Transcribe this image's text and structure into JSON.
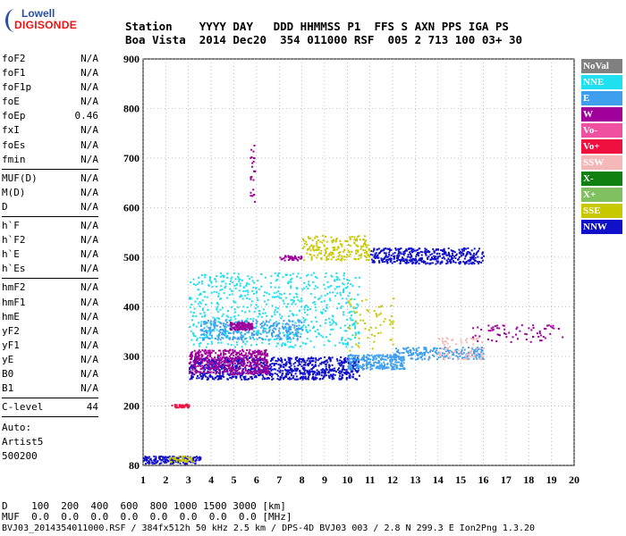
{
  "logo": {
    "line1": "Lowell",
    "line2": "DIGISONDE"
  },
  "header": {
    "row1": "Station    YYYY DAY   DDD HHMMSS P1  FFS S AXN PPS IGA PS",
    "row2": "Boa Vista  2014 Dec20  354 011000 RSF  005 2 713 100 03+ 30"
  },
  "params": {
    "group1": [
      {
        "label": "foF2",
        "value": "N/A"
      },
      {
        "label": "foF1",
        "value": "N/A"
      },
      {
        "label": "foF1p",
        "value": "N/A"
      },
      {
        "label": "foE",
        "value": "N/A"
      },
      {
        "label": "foEp",
        "value": "0.46"
      },
      {
        "label": "fxI",
        "value": "N/A"
      },
      {
        "label": "foEs",
        "value": "N/A"
      },
      {
        "label": "fmin",
        "value": "N/A"
      }
    ],
    "group2": [
      {
        "label": "MUF(D)",
        "value": "N/A"
      },
      {
        "label": "M(D)",
        "value": "N/A"
      },
      {
        "label": "D",
        "value": "N/A"
      }
    ],
    "group3": [
      {
        "label": "h`F",
        "value": "N/A"
      },
      {
        "label": "h`F2",
        "value": "N/A"
      },
      {
        "label": "h`E",
        "value": "N/A"
      },
      {
        "label": "h`Es",
        "value": "N/A"
      }
    ],
    "group4": [
      {
        "label": "hmF2",
        "value": "N/A"
      },
      {
        "label": "hmF1",
        "value": "N/A"
      },
      {
        "label": "hmE",
        "value": "N/A"
      },
      {
        "label": "yF2",
        "value": "N/A"
      },
      {
        "label": "yF1",
        "value": "N/A"
      },
      {
        "label": "yE",
        "value": "N/A"
      },
      {
        "label": "B0",
        "value": "N/A"
      },
      {
        "label": "B1",
        "value": "N/A"
      }
    ],
    "group5": [
      {
        "label": "C-level",
        "value": "44"
      }
    ],
    "auto": [
      "Auto:",
      "Artist5",
      "500200"
    ]
  },
  "legend": [
    {
      "label": "NoVal",
      "color": "#808080"
    },
    {
      "label": "NNE",
      "color": "#1ee0f0"
    },
    {
      "label": "E",
      "color": "#3f9fef"
    },
    {
      "label": "W",
      "color": "#a0009a"
    },
    {
      "label": "Vo-",
      "color": "#f050a0"
    },
    {
      "label": "Vo+",
      "color": "#f01040"
    },
    {
      "label": "SSW",
      "color": "#f5b8b8"
    },
    {
      "label": "X-",
      "color": "#108010"
    },
    {
      "label": "X+",
      "color": "#80c060"
    },
    {
      "label": "SSE",
      "color": "#c8c800"
    },
    {
      "label": "NNW",
      "color": "#1010c8"
    }
  ],
  "footer": {
    "line1": "D    100  200  400  600  800 1000 1500 3000 [km]",
    "line2": "MUF  0.0  0.0  0.0  0.0  0.0  0.0  0.0  0.0 [MHz]",
    "line3": "BVJ03_2014354011000.RSF / 384fx512h 50 kHz 2.5 km / DPS-4D BVJ03 003 / 2.8 N 299.3 E Ion2Png 1.3.20"
  },
  "chart_data": {
    "type": "scatter",
    "title": "",
    "xlabel": "",
    "ylabel": "",
    "xlim": [
      1,
      20
    ],
    "ylim": [
      80,
      900
    ],
    "xticks": [
      1,
      2,
      3,
      4,
      5,
      6,
      7,
      8,
      9,
      10,
      11,
      12,
      13,
      14,
      15,
      16,
      17,
      18,
      19,
      20
    ],
    "yticks": [
      80,
      200,
      300,
      400,
      500,
      600,
      700,
      800,
      900
    ],
    "grid": "dotted",
    "legend_position": "right",
    "clusters": [
      {
        "direction": "NNW",
        "x": [
          3.0,
          10.5
        ],
        "y": [
          255,
          300
        ],
        "count": 900
      },
      {
        "direction": "W",
        "x": [
          3.0,
          6.5
        ],
        "y": [
          265,
          315
        ],
        "count": 500
      },
      {
        "direction": "NNE",
        "x": [
          3.0,
          10.5
        ],
        "y": [
          320,
          470
        ],
        "count": 700
      },
      {
        "direction": "E",
        "x": [
          3.5,
          8.0
        ],
        "y": [
          335,
          375
        ],
        "count": 300
      },
      {
        "direction": "W",
        "x": [
          4.8,
          5.8
        ],
        "y": [
          355,
          370
        ],
        "count": 120
      },
      {
        "direction": "E",
        "x": [
          10.0,
          12.5
        ],
        "y": [
          275,
          305
        ],
        "count": 250
      },
      {
        "direction": "E",
        "x": [
          12.0,
          16.0
        ],
        "y": [
          295,
          320
        ],
        "count": 200
      },
      {
        "direction": "SSW",
        "x": [
          14.0,
          16.0
        ],
        "y": [
          295,
          340
        ],
        "count": 80
      },
      {
        "direction": "NNW",
        "x": [
          11.0,
          16.0
        ],
        "y": [
          488,
          520
        ],
        "count": 420
      },
      {
        "direction": "SSE",
        "x": [
          8.0,
          11.0
        ],
        "y": [
          495,
          545
        ],
        "count": 200
      },
      {
        "direction": "W",
        "x": [
          7.0,
          8.0
        ],
        "y": [
          495,
          505
        ],
        "count": 40
      },
      {
        "direction": "SSE",
        "x": [
          10.0,
          12.0
        ],
        "y": [
          310,
          420
        ],
        "count": 60
      },
      {
        "direction": "W",
        "x": [
          15.5,
          19.5
        ],
        "y": [
          330,
          365
        ],
        "count": 70
      },
      {
        "direction": "Vo+",
        "x": [
          2.2,
          3.0
        ],
        "y": [
          198,
          205
        ],
        "count": 40
      },
      {
        "direction": "NNW",
        "x": [
          1.0,
          3.5
        ],
        "y": [
          85,
          100
        ],
        "count": 160
      },
      {
        "direction": "SSE",
        "x": [
          2.0,
          3.2
        ],
        "y": [
          88,
          100
        ],
        "count": 40
      },
      {
        "direction": "W",
        "x": [
          5.7,
          5.9
        ],
        "y": [
          610,
          730
        ],
        "count": 25
      }
    ]
  }
}
